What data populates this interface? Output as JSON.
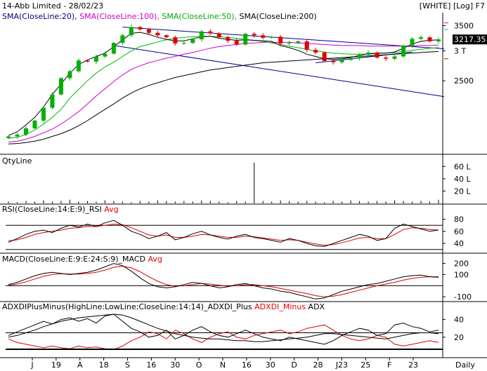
{
  "header": {
    "title": "14-Abb Limited - 28/02/23",
    "mode": "[WHITE] [Log] F7",
    "timeframe": "Daily"
  },
  "colors": {
    "up": "#00b000",
    "down": "#e00000",
    "sma20": "#000000",
    "sma100": "#cc00cc",
    "sma50": "#00bb00",
    "sma200": "#000000",
    "trend": "#00008b",
    "red": "#e00000"
  },
  "chart_data": [
    {
      "panel": "price",
      "type": "candlestick",
      "scale": "log",
      "legend": [
        {
          "label": "SMA(CloseLine:20),",
          "color": "#000080"
        },
        {
          "label": "SMA(CloseLine:100),",
          "color": "#cc00cc"
        },
        {
          "label": "SMA(CloseLine:50),",
          "color": "#00aa00"
        },
        {
          "label": "SMA(CloseLine:200)",
          "color": "#000000"
        }
      ],
      "y_ticks": [
        "3500",
        "3 T",
        "2500"
      ],
      "last_value": "3217.35",
      "x_ticks": [
        "J",
        "19",
        "A",
        "18",
        "S",
        "16",
        "30",
        "O",
        "N",
        "16",
        "30",
        "D",
        "28",
        "J23",
        "25",
        "F",
        "23"
      ],
      "close_path": [
        1780,
        1800,
        1870,
        1960,
        2120,
        2300,
        2540,
        2650,
        2830,
        2810,
        2900,
        2950,
        3150,
        3300,
        3470,
        3420,
        3350,
        3300,
        3260,
        3140,
        3150,
        3220,
        3380,
        3340,
        3260,
        3190,
        3120,
        3330,
        3300,
        3250,
        3270,
        3140,
        3150,
        3180,
        3020,
        2970,
        2820,
        2800,
        2840,
        2870,
        2930,
        2970,
        2880,
        2860,
        2900,
        3100,
        3230,
        3260,
        3180,
        3217.35
      ],
      "sma": {
        "sma20": [
          1790,
          1830,
          1910,
          2000,
          2130,
          2300,
          2450,
          2620,
          2760,
          2840,
          2900,
          2960,
          3080,
          3210,
          3340,
          3360,
          3320,
          3260,
          3220,
          3190,
          3190,
          3230,
          3270,
          3280,
          3240,
          3220,
          3200,
          3210,
          3200,
          3190,
          3180,
          3100,
          3060,
          3010,
          2940,
          2900,
          2860,
          2850,
          2860,
          2880,
          2920,
          2950,
          2960,
          2960,
          2980,
          3050,
          3130,
          3180,
          3200,
          3210
        ],
        "sma50": [
          1760,
          1770,
          1800,
          1850,
          1920,
          2000,
          2100,
          2250,
          2370,
          2500,
          2620,
          2720,
          2800,
          2900,
          3000,
          3080,
          3120,
          3170,
          3210,
          3240,
          3260,
          3270,
          3280,
          3280,
          3270,
          3260,
          3240,
          3220,
          3200,
          3180,
          3150,
          3120,
          3090,
          3060,
          3030,
          3000,
          2980,
          2960,
          2950,
          2940,
          2940,
          2940,
          2950,
          2960,
          2970,
          2990,
          3010,
          3030,
          3050,
          3060
        ],
        "sma100": [
          1720,
          1730,
          1750,
          1780,
          1820,
          1860,
          1920,
          1990,
          2070,
          2170,
          2280,
          2380,
          2490,
          2590,
          2680,
          2740,
          2790,
          2830,
          2870,
          2900,
          2940,
          2970,
          3010,
          3050,
          3080,
          3100,
          3120,
          3140,
          3150,
          3160,
          3160,
          3160,
          3160,
          3150,
          3140,
          3130,
          3120,
          3110,
          3100,
          3100,
          3100,
          3090,
          3090,
          3090,
          3090,
          3090,
          3090,
          3100,
          3100,
          3110
        ],
        "sma200": [
          1700,
          1705,
          1715,
          1730,
          1750,
          1780,
          1810,
          1850,
          1900,
          1960,
          2030,
          2100,
          2170,
          2250,
          2320,
          2380,
          2430,
          2470,
          2510,
          2550,
          2580,
          2610,
          2640,
          2670,
          2690,
          2710,
          2730,
          2750,
          2770,
          2790,
          2800,
          2810,
          2820,
          2830,
          2840,
          2850,
          2860,
          2870,
          2880,
          2890,
          2900,
          2910,
          2920,
          2930,
          2940,
          2950,
          2960,
          2970,
          2980,
          2990
        ]
      }
    },
    {
      "panel": "volume",
      "type": "bar",
      "title": "QtyLine",
      "y_ticks": [
        "60 L",
        "40 L",
        "20 L"
      ],
      "values": [
        3,
        2,
        4,
        3,
        5,
        3,
        4,
        6,
        3,
        4,
        3,
        5,
        4,
        3,
        2,
        4,
        3,
        5,
        4,
        3,
        4,
        3,
        5,
        4,
        3,
        2,
        4,
        3,
        66,
        4,
        3,
        5,
        4,
        3,
        4,
        3,
        2,
        4,
        3,
        5,
        4,
        3,
        4,
        3,
        5,
        4,
        3,
        4,
        3,
        6
      ]
    },
    {
      "panel": "rsi",
      "type": "line",
      "legend": [
        {
          "label": "RSI(CloseLine:14:E:9)_RSI",
          "color": "#000000"
        },
        {
          "label": "Avg",
          "color": "#e00000"
        }
      ],
      "y_ticks": [
        "80",
        "60",
        "40"
      ],
      "levels": [
        70,
        30
      ],
      "rsi": [
        42,
        48,
        55,
        60,
        62,
        58,
        65,
        70,
        67,
        72,
        68,
        74,
        78,
        70,
        60,
        55,
        48,
        52,
        58,
        46,
        50,
        56,
        60,
        54,
        50,
        47,
        52,
        55,
        50,
        48,
        45,
        42,
        48,
        45,
        40,
        36,
        35,
        40,
        45,
        50,
        55,
        52,
        45,
        48,
        65,
        72,
        68,
        64,
        60,
        62
      ],
      "avg": [
        44,
        46,
        50,
        55,
        58,
        60,
        62,
        65,
        66,
        68,
        68,
        70,
        72,
        71,
        66,
        60,
        54,
        52,
        54,
        50,
        50,
        52,
        55,
        54,
        52,
        50,
        50,
        52,
        51,
        49,
        47,
        45,
        46,
        45,
        42,
        39,
        37,
        38,
        41,
        45,
        49,
        50,
        48,
        48,
        55,
        63,
        66,
        65,
        63,
        62
      ]
    },
    {
      "panel": "macd",
      "type": "line",
      "legend": [
        {
          "label": "MACD(CloseLine:E:9:E:24:S:9)_MACD",
          "color": "#000000"
        },
        {
          "label": "Avg",
          "color": "#e00000"
        }
      ],
      "y_ticks": [
        "200",
        "100",
        "-100"
      ],
      "macd": [
        10,
        30,
        60,
        90,
        110,
        120,
        110,
        100,
        110,
        120,
        140,
        170,
        200,
        180,
        130,
        70,
        20,
        -10,
        -20,
        -10,
        10,
        30,
        20,
        0,
        -20,
        -10,
        10,
        20,
        0,
        -20,
        -30,
        -50,
        -60,
        -80,
        -100,
        -120,
        -110,
        -80,
        -50,
        -30,
        -10,
        10,
        20,
        40,
        60,
        80,
        90,
        95,
        80,
        75
      ],
      "avg": [
        5,
        15,
        35,
        60,
        85,
        100,
        108,
        105,
        105,
        110,
        120,
        140,
        165,
        175,
        160,
        125,
        80,
        40,
        10,
        -5,
        0,
        10,
        20,
        15,
        5,
        -5,
        0,
        10,
        10,
        0,
        -10,
        -25,
        -40,
        -55,
        -70,
        -90,
        -100,
        -95,
        -80,
        -60,
        -40,
        -20,
        0,
        15,
        30,
        50,
        65,
        75,
        80,
        80
      ]
    },
    {
      "panel": "adx",
      "type": "line",
      "legend": [
        {
          "label": "ADXDIPlusMinus(HighLine:LowLine:CloseLine:14:14)_ADXDI_Plus",
          "color": "#000000"
        },
        {
          "label": "ADXDI_Minus",
          "color": "#e00000"
        },
        {
          "label": "ADX",
          "color": "#000000"
        }
      ],
      "y_ticks": [
        "40",
        "20"
      ],
      "levels": [
        25
      ],
      "di_plus": [
        22,
        26,
        30,
        34,
        38,
        35,
        40,
        42,
        38,
        41,
        36,
        44,
        46,
        38,
        30,
        26,
        20,
        22,
        28,
        18,
        22,
        28,
        32,
        26,
        22,
        20,
        24,
        28,
        24,
        20,
        18,
        16,
        20,
        18,
        16,
        14,
        12,
        16,
        22,
        26,
        30,
        28,
        22,
        24,
        34,
        36,
        32,
        30,
        26,
        28
      ],
      "di_minus": [
        18,
        14,
        12,
        10,
        8,
        10,
        8,
        7,
        10,
        8,
        9,
        7,
        6,
        10,
        16,
        20,
        26,
        24,
        18,
        28,
        24,
        18,
        14,
        20,
        24,
        26,
        20,
        18,
        22,
        24,
        26,
        28,
        24,
        26,
        30,
        32,
        34,
        28,
        22,
        18,
        16,
        18,
        22,
        20,
        12,
        10,
        12,
        14,
        16,
        14
      ],
      "adx": [
        20,
        22,
        25,
        28,
        32,
        35,
        38,
        40,
        42,
        43,
        44,
        45,
        46,
        45,
        42,
        38,
        34,
        30,
        27,
        24,
        22,
        20,
        19,
        18,
        18,
        17,
        16,
        16,
        15,
        15,
        16,
        17,
        18,
        19,
        20,
        22,
        24,
        24,
        23,
        22,
        21,
        20,
        19,
        18,
        20,
        22,
        24,
        25,
        25,
        24
      ]
    }
  ]
}
